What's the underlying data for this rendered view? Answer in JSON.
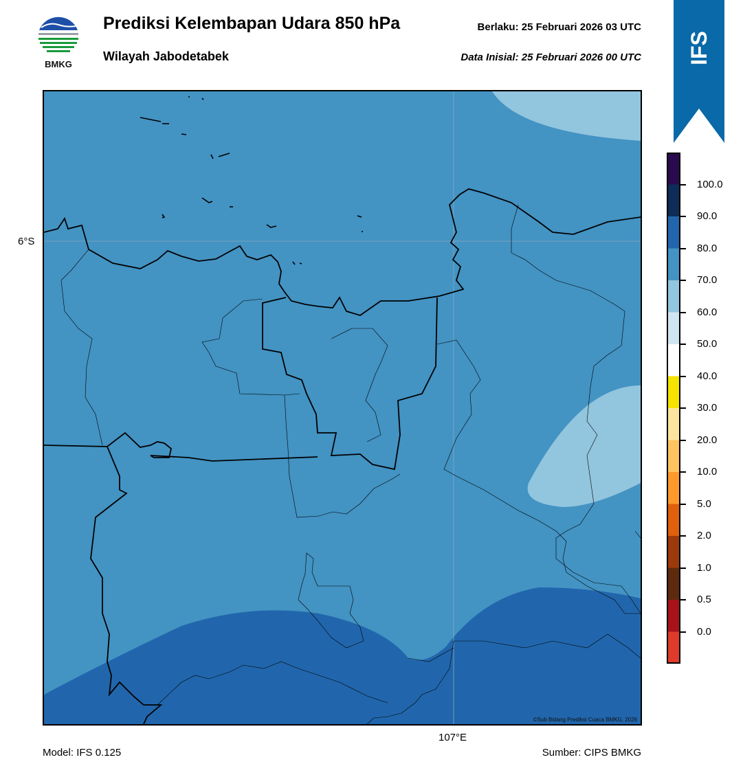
{
  "header": {
    "title": "Prediksi Kelembapan Udara 850 hPa",
    "subtitle": "Wilayah Jabodetabek",
    "valid_label": "Berlaku:  25 Februari 2026 03 UTC",
    "init_label": "Data Inisial:  25 Februari 2026 00 UTC"
  },
  "logo": {
    "text": "BMKG",
    "icon": "bmkg-logo"
  },
  "ribbon": {
    "text": "IFS",
    "color": "#0a69a8"
  },
  "map": {
    "lat_label": "6°S",
    "lon_label": "107°E",
    "copyright": "©Sub Bidang Prediksi Cuaca BMKG, 2026"
  },
  "colorbar": {
    "labels": [
      "100.0",
      "90.0",
      "80.0",
      "70.0",
      "60.0",
      "50.0",
      "40.0",
      "30.0",
      "20.0",
      "10.0",
      "5.0",
      "2.0",
      "1.0",
      "0.5",
      "0.0"
    ],
    "colors": [
      "#2a0a4f",
      "#0d2c57",
      "#2166ac",
      "#4393c3",
      "#92c5de",
      "#d1e5f0",
      "#ffffff",
      "#f5e300",
      "#fde49e",
      "#fec461",
      "#fd9a2b",
      "#e0600d",
      "#9c3a0c",
      "#5e2a0e",
      "#a8131a",
      "#e03b2a"
    ]
  },
  "footer": {
    "model": "Model: IFS 0.125",
    "source": "Sumber: CIPS BMKG"
  }
}
